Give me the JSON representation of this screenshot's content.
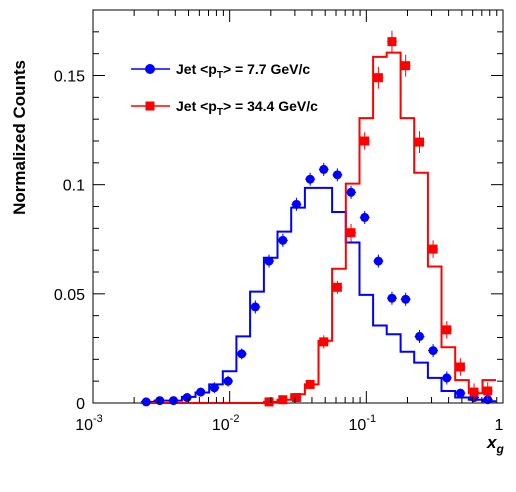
{
  "chart_data": {
    "type": "scatter",
    "ylabel": "Normalized Counts",
    "xlabel": "x_g",
    "xscale": "log",
    "xlim": [
      0.001,
      1
    ],
    "ylim": [
      0,
      0.18
    ],
    "x_ticks": [
      {
        "value": 0.001,
        "base": "10",
        "exp": "-3"
      },
      {
        "value": 0.01,
        "base": "10",
        "exp": "-2"
      },
      {
        "value": 0.1,
        "base": "10",
        "exp": "-1"
      },
      {
        "value": 1,
        "base": "1",
        "exp": ""
      }
    ],
    "y_ticks": [
      {
        "value": 0,
        "label": "0"
      },
      {
        "value": 0.05,
        "label": "0.05"
      },
      {
        "value": 0.1,
        "label": "0.1"
      },
      {
        "value": 0.15,
        "label": "0.15"
      }
    ],
    "legend_position": "top-left",
    "series": [
      {
        "name": "Jet <p_T> = 7.7 GeV/c",
        "name_parts": [
          "Jet <p",
          "T",
          "> = 7.7 GeV/c"
        ],
        "color": "#0000ff",
        "marker": "circle",
        "points": [
          {
            "x": 0.00245,
            "y": 0.0005,
            "err": 0.001
          },
          {
            "x": 0.00308,
            "y": 0.0011,
            "err": 0.001
          },
          {
            "x": 0.00388,
            "y": 0.0011,
            "err": 0.001
          },
          {
            "x": 0.00488,
            "y": 0.0025,
            "err": 0.002
          },
          {
            "x": 0.00614,
            "y": 0.005,
            "err": 0.002
          },
          {
            "x": 0.00773,
            "y": 0.007,
            "err": 0.0025
          },
          {
            "x": 0.00973,
            "y": 0.01,
            "err": 0.0025
          },
          {
            "x": 0.01225,
            "y": 0.0225,
            "err": 0.0025
          },
          {
            "x": 0.0154,
            "y": 0.044,
            "err": 0.003
          },
          {
            "x": 0.0194,
            "y": 0.065,
            "err": 0.003
          },
          {
            "x": 0.0245,
            "y": 0.0745,
            "err": 0.003
          },
          {
            "x": 0.0308,
            "y": 0.091,
            "err": 0.003
          },
          {
            "x": 0.0388,
            "y": 0.1025,
            "err": 0.003
          },
          {
            "x": 0.0488,
            "y": 0.107,
            "err": 0.003
          },
          {
            "x": 0.0614,
            "y": 0.1045,
            "err": 0.003
          },
          {
            "x": 0.0773,
            "y": 0.0965,
            "err": 0.003
          },
          {
            "x": 0.0973,
            "y": 0.085,
            "err": 0.003
          },
          {
            "x": 0.1225,
            "y": 0.065,
            "err": 0.003
          },
          {
            "x": 0.154,
            "y": 0.048,
            "err": 0.003
          },
          {
            "x": 0.194,
            "y": 0.0475,
            "err": 0.003
          },
          {
            "x": 0.245,
            "y": 0.0305,
            "err": 0.003
          },
          {
            "x": 0.308,
            "y": 0.024,
            "err": 0.003
          },
          {
            "x": 0.388,
            "y": 0.0115,
            "err": 0.003
          },
          {
            "x": 0.488,
            "y": 0.0045,
            "err": 0.002
          },
          {
            "x": 0.614,
            "y": 0.0025,
            "err": 0.002
          },
          {
            "x": 0.773,
            "y": 0.0015,
            "err": 0.002
          }
        ],
        "histogram": {
          "edges": [
            0.00224,
            0.00282,
            0.00355,
            0.00447,
            0.00562,
            0.00708,
            0.00891,
            0.0112,
            0.0141,
            0.0178,
            0.0224,
            0.0282,
            0.0355,
            0.0447,
            0.0562,
            0.0708,
            0.0891,
            0.112,
            0.141,
            0.178,
            0.224,
            0.282,
            0.355,
            0.447,
            0.562,
            0.708,
            0.891
          ],
          "values": [
            0.0005,
            0.0011,
            0.0011,
            0.0028,
            0.0048,
            0.0085,
            0.0145,
            0.0305,
            0.051,
            0.0665,
            0.0785,
            0.0895,
            0.0985,
            0.0985,
            0.0875,
            0.0735,
            0.0495,
            0.0355,
            0.0315,
            0.0235,
            0.0185,
            0.0115,
            0.0055,
            0.0025,
            0.0015,
            0.0008
          ]
        }
      },
      {
        "name": "Jet <p_T> = 34.4 GeV/c",
        "name_parts": [
          "Jet <p",
          "T",
          "> = 34.4 GeV/c"
        ],
        "color": "#ff0000",
        "marker": "square",
        "points": [
          {
            "x": 0.0194,
            "y": 0.0005,
            "err": 0.001
          },
          {
            "x": 0.0245,
            "y": 0.0015,
            "err": 0.001
          },
          {
            "x": 0.0308,
            "y": 0.0025,
            "err": 0.0015
          },
          {
            "x": 0.0388,
            "y": 0.0085,
            "err": 0.002
          },
          {
            "x": 0.0488,
            "y": 0.028,
            "err": 0.003
          },
          {
            "x": 0.0614,
            "y": 0.053,
            "err": 0.003
          },
          {
            "x": 0.0773,
            "y": 0.078,
            "err": 0.004
          },
          {
            "x": 0.0973,
            "y": 0.12,
            "err": 0.004
          },
          {
            "x": 0.1225,
            "y": 0.149,
            "err": 0.005
          },
          {
            "x": 0.154,
            "y": 0.1655,
            "err": 0.005
          },
          {
            "x": 0.194,
            "y": 0.1545,
            "err": 0.005
          },
          {
            "x": 0.245,
            "y": 0.1195,
            "err": 0.005
          },
          {
            "x": 0.308,
            "y": 0.0705,
            "err": 0.004
          },
          {
            "x": 0.388,
            "y": 0.0335,
            "err": 0.004
          },
          {
            "x": 0.488,
            "y": 0.0165,
            "err": 0.004
          },
          {
            "x": 0.614,
            "y": 0.005,
            "err": 0.004
          },
          {
            "x": 0.773,
            "y": 0.0055,
            "err": 0.004
          }
        ],
        "histogram": {
          "edges": [
            0.00224,
            0.0178,
            0.0224,
            0.0282,
            0.0355,
            0.0447,
            0.0562,
            0.0708,
            0.0891,
            0.112,
            0.141,
            0.178,
            0.224,
            0.282,
            0.355,
            0.447,
            0.562,
            0.708,
            0.891
          ],
          "values": [
            0.0,
            0.0005,
            0.0015,
            0.004,
            0.0085,
            0.0285,
            0.0615,
            0.1005,
            0.1305,
            0.1585,
            0.1605,
            0.1305,
            0.1055,
            0.0625,
            0.0255,
            0.0105,
            0.0045,
            0.0105
          ]
        }
      }
    ]
  }
}
